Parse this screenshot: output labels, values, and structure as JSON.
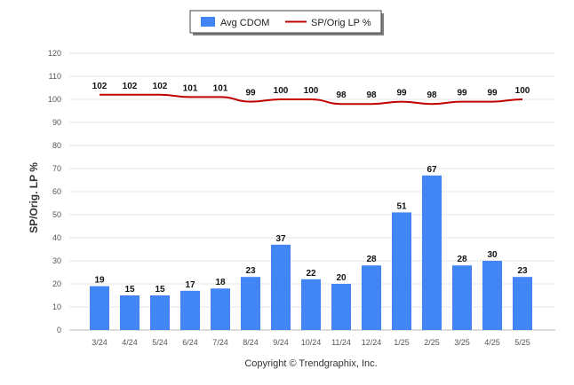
{
  "chart_data": {
    "type": "bar",
    "ylabel": "SP/Orig. LP %",
    "xlabel": "",
    "ylim": [
      0,
      120
    ],
    "yticks": [
      0,
      10,
      20,
      30,
      40,
      50,
      60,
      70,
      80,
      90,
      100,
      110,
      120
    ],
    "grid": true,
    "legend_position": "top-center",
    "categories": [
      "3/24",
      "4/24",
      "5/24",
      "6/24",
      "7/24",
      "8/24",
      "9/24",
      "10/24",
      "11/24",
      "12/24",
      "1/25",
      "2/25",
      "3/25",
      "4/25",
      "5/25"
    ],
    "series": [
      {
        "name": "Avg CDOM",
        "type": "bar",
        "color": "#4285f4",
        "values": [
          19,
          15,
          15,
          17,
          18,
          23,
          37,
          22,
          20,
          28,
          51,
          67,
          28,
          30,
          23
        ]
      },
      {
        "name": "SP/Orig LP %",
        "type": "line",
        "color": "#c00000",
        "values": [
          102,
          102,
          102,
          101,
          101,
          99,
          100,
          100,
          98,
          98,
          99,
          98,
          99,
          99,
          100
        ]
      }
    ]
  },
  "footer": {
    "copyright": "Copyright © Trendgraphix, Inc."
  }
}
